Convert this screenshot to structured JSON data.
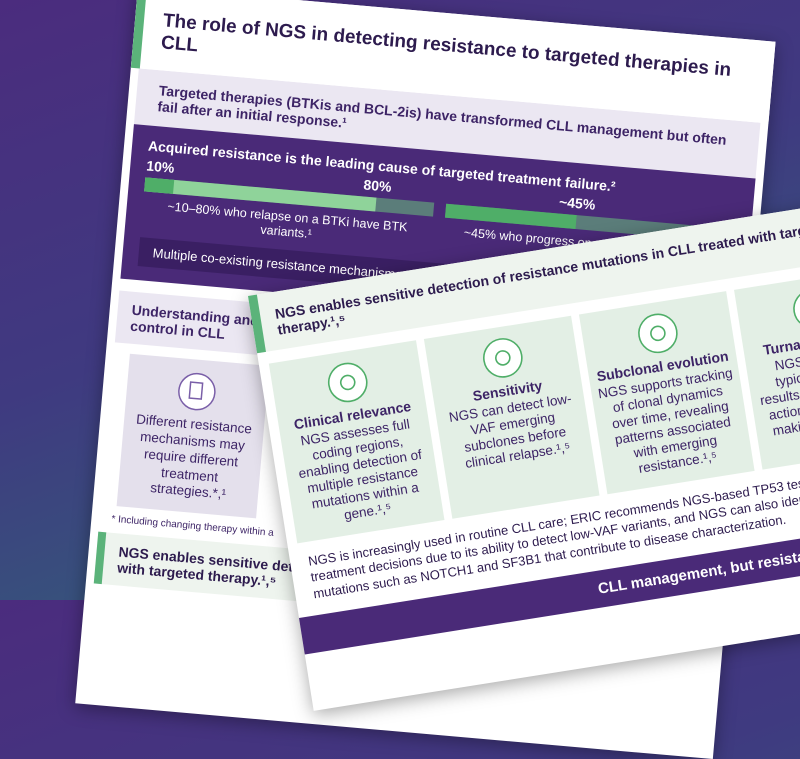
{
  "back_page": {
    "title": "The role of NGS in detecting resistance to targeted therapies in CLL",
    "intro": "Targeted therapies (BTKis and BCL-2is) have transformed CLL management but often fail after an initial response.¹",
    "resistance": {
      "heading": "Acquired resistance is the leading cause of targeted treatment failure.²",
      "btk": {
        "low": {
          "value": 10,
          "label": "10%"
        },
        "high": {
          "value": 80,
          "label": "80%"
        },
        "caption": "~10–80% who relapse on a BTKi have BTK variants.¹"
      },
      "bcl2": {
        "share": {
          "value": 45,
          "label": "~45%"
        },
        "caption": "~45% who progress on a BCL-2i have BCL-2 variants."
      },
      "banner": "Multiple co-existing resistance mechanisms can"
    },
    "section2": {
      "heading": "Understanding and disease control in CLL",
      "card_text": "Different resistance mechanisms may require different treatment strategies.*,¹",
      "footnote": "* Including changing therapy within a"
    },
    "section3_heading": "NGS enables sensitive detection with targeted therapy.¹,⁵"
  },
  "front_page": {
    "title": "NGS enables sensitive detection of resistance mutations in CLL treated with targeted therapy.¹,⁵",
    "features": [
      {
        "heading": "Clinical relevance",
        "text": "NGS assesses full coding regions, enabling detection of multiple resistance mutations within a gene.¹,⁵"
      },
      {
        "heading": "Sensitivity",
        "text": "NGS can detect low-VAF emerging subclones before clinical relapse.¹,⁵"
      },
      {
        "heading": "Subclonal evolution",
        "text": "NGS supports tracking of clonal dynamics over time, revealing patterns associated with emerging resistance.¹,⁵"
      },
      {
        "heading": "Turnaround time",
        "text": "NGS workflows typically provide results within clinically actionable decision-making windows.¹,⁵"
      }
    ],
    "footer": "NGS is increasingly used in routine CLL care; ERIC recommends NGS-based TP53 testing before treatment decisions due to its ability to detect low-VAF variants, and NGS can also identify recurrent mutations such as NOTCH1 and SF3B1 that contribute to disease characterization.",
    "banner": "CLL management, but resistance can"
  }
}
